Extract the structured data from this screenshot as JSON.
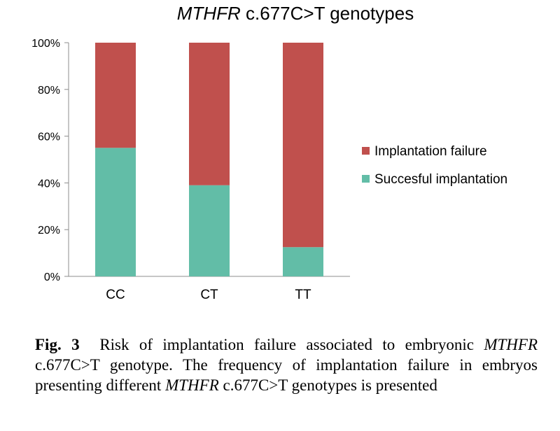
{
  "chart_data": {
    "type": "bar",
    "stacked": true,
    "title_italic": "MTHFR",
    "title_rest": " c.677C>T genotypes",
    "categories": [
      "CC",
      "CT",
      "TT"
    ],
    "series": [
      {
        "name": "Succesful implantation",
        "color": "#62bda7",
        "values": [
          55,
          39,
          12.5
        ]
      },
      {
        "name": "Implantation failure",
        "color": "#c0504d",
        "values": [
          45,
          61,
          87.5
        ]
      }
    ],
    "y_ticks": [
      "0%",
      "20%",
      "40%",
      "60%",
      "80%",
      "100%"
    ],
    "ylim": [
      0,
      100
    ],
    "legend_position": "right",
    "grid": false
  },
  "caption": {
    "label": "Fig. 3",
    "part1": "Risk of implantation failure associated to embryonic ",
    "italic1": "MTHFR",
    "part2": " c.677C>T genotype. The frequency of implantation failure in embryos presenting different ",
    "italic2": "MTHFR",
    "part3": " c.677C>T genotypes is presented"
  }
}
